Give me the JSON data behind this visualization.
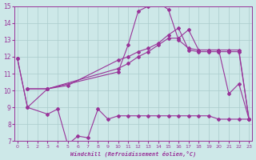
{
  "xlabel": "Windchill (Refroidissement éolien,°C)",
  "bg_color": "#cde8e8",
  "line_color": "#993399",
  "grid_color": "#aacccc",
  "xmin": 0,
  "xmax": 23,
  "ymin": 7,
  "ymax": 15,
  "yticks": [
    7,
    8,
    9,
    10,
    11,
    12,
    13,
    14,
    15
  ],
  "xticks": [
    0,
    1,
    2,
    3,
    4,
    5,
    6,
    7,
    8,
    9,
    10,
    11,
    12,
    13,
    14,
    15,
    16,
    17,
    18,
    19,
    20,
    21,
    22,
    23
  ],
  "line1_x": [
    0,
    1,
    3,
    4,
    5,
    6,
    7,
    8,
    9,
    10,
    11,
    12,
    13,
    14,
    15,
    16,
    17,
    18,
    19,
    20,
    21,
    22,
    23
  ],
  "line1_y": [
    11.9,
    9.0,
    8.6,
    8.9,
    6.8,
    7.3,
    7.2,
    8.9,
    8.3,
    8.5,
    8.5,
    8.5,
    8.5,
    8.5,
    8.5,
    8.5,
    8.5,
    8.5,
    8.5,
    8.3,
    8.3,
    8.3,
    8.3
  ],
  "line2_x": [
    0,
    1,
    3,
    10,
    11,
    12,
    13,
    14,
    15,
    16,
    17,
    18,
    19,
    20,
    21,
    22,
    23
  ],
  "line2_y": [
    11.9,
    9.0,
    10.1,
    11.1,
    12.7,
    14.7,
    15.0,
    15.2,
    14.8,
    13.0,
    12.5,
    12.4,
    12.4,
    12.4,
    9.8,
    10.4,
    8.3
  ],
  "line3_x": [
    1,
    3,
    10,
    11,
    12,
    13,
    14,
    15,
    16,
    17,
    18,
    19,
    20,
    21,
    22,
    23
  ],
  "line3_y": [
    10.1,
    10.1,
    11.3,
    11.6,
    12.0,
    12.3,
    12.7,
    13.1,
    13.1,
    13.6,
    12.4,
    12.4,
    12.4,
    12.4,
    12.4,
    8.3
  ],
  "line4_x": [
    1,
    3,
    5,
    10,
    11,
    12,
    13,
    14,
    15,
    16,
    17,
    18,
    19,
    20,
    21,
    22,
    23
  ],
  "line4_y": [
    10.1,
    10.1,
    10.3,
    11.8,
    12.0,
    12.3,
    12.5,
    12.8,
    13.3,
    13.7,
    12.4,
    12.3,
    12.3,
    12.3,
    12.3,
    12.3,
    8.3
  ]
}
